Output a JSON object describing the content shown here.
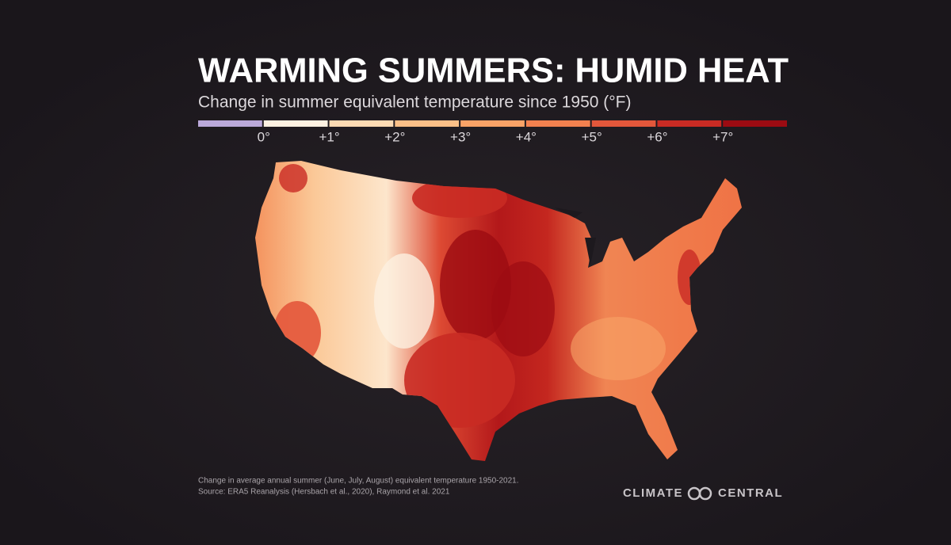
{
  "header": {
    "title": "WARMING SUMMERS: HUMID HEAT",
    "subtitle": "Change in summer equivalent temperature since 1950 (°F)"
  },
  "legend": {
    "colors": [
      "#bba9da",
      "#fdf1e2",
      "#fcdab3",
      "#fbc088",
      "#f9a367",
      "#f2814f",
      "#e3573b",
      "#c92b24",
      "#9c0b12"
    ],
    "labels": [
      "0°",
      "+1°",
      "+2°",
      "+3°",
      "+4°",
      "+5°",
      "+6°",
      "+7°"
    ]
  },
  "footer": {
    "notes": [
      "Change in average annual summer (June, July, August) equivalent temperature 1950-2021.",
      "Source: ERA5 Reanalysis (Hersbach et al., 2020), Raymond et al. 2021"
    ],
    "logo": [
      "CLIMATE",
      "CENTRAL"
    ]
  }
}
